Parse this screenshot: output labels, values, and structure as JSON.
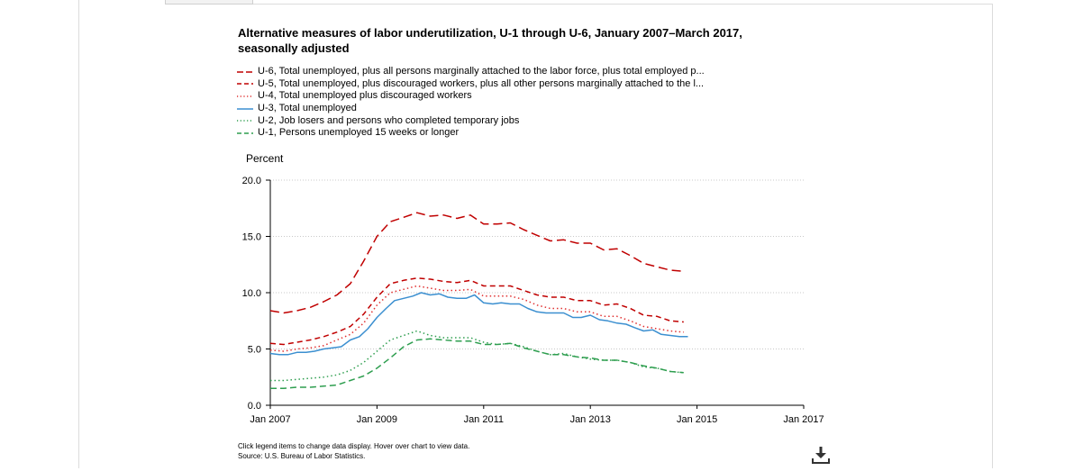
{
  "chart_data": {
    "type": "line",
    "title": "Alternative measures of labor underutilization, U-1 through U-6, January 2007–March 2017, seasonally adjusted",
    "ylabel": "Percent",
    "xlabel": "",
    "xlim": [
      2007.0,
      2017.0
    ],
    "ylim": [
      0,
      20
    ],
    "yticks": [
      "0.0",
      "5.0",
      "10.0",
      "15.0",
      "20.0"
    ],
    "yticks_values": [
      0,
      5,
      10,
      15,
      20
    ],
    "xticks": [
      "Jan 2007",
      "Jan 2009",
      "Jan 2011",
      "Jan 2013",
      "Jan 2015",
      "Jan 2017"
    ],
    "xticks_values": [
      2007,
      2009,
      2011,
      2013,
      2015,
      2017
    ],
    "grid": "horizontal dotted",
    "legend_position": "top",
    "series": [
      {
        "name": "U-6, Total unemployed, plus all persons marginally attached to the labor force, plus total employed p...",
        "color": "#c00000",
        "dash": "10,5",
        "width": 1.5,
        "x": [
          2007.0,
          2007.25,
          2007.5,
          2007.75,
          2008.0,
          2008.25,
          2008.5,
          2008.75,
          2009.0,
          2009.25,
          2009.5,
          2009.75,
          2010.0,
          2010.25,
          2010.5,
          2010.75,
          2011.0,
          2011.25,
          2011.5,
          2011.75,
          2012.0,
          2012.25,
          2012.5,
          2012.75,
          2013.0,
          2013.25,
          2013.5,
          2013.75,
          2014.0,
          2014.25,
          2014.5,
          2014.75
        ],
        "y": [
          8.4,
          8.2,
          8.4,
          8.7,
          9.2,
          9.8,
          10.8,
          12.8,
          15.0,
          16.3,
          16.7,
          17.1,
          16.8,
          16.9,
          16.6,
          16.9,
          16.1,
          16.1,
          16.2,
          15.6,
          15.1,
          14.6,
          14.7,
          14.4,
          14.4,
          13.8,
          13.9,
          13.3,
          12.6,
          12.3,
          12.0,
          11.9
        ]
      },
      {
        "name": "U-5, Total unemployed, plus discouraged workers, plus all other persons marginally attached to the l...",
        "color": "#c00000",
        "dash": "6,4",
        "width": 1.5,
        "x": [
          2007.0,
          2007.25,
          2007.5,
          2007.75,
          2008.0,
          2008.25,
          2008.5,
          2008.75,
          2009.0,
          2009.25,
          2009.5,
          2009.75,
          2010.0,
          2010.25,
          2010.5,
          2010.75,
          2011.0,
          2011.25,
          2011.5,
          2011.75,
          2012.0,
          2012.25,
          2012.5,
          2012.75,
          2013.0,
          2013.25,
          2013.5,
          2013.75,
          2014.0,
          2014.25,
          2014.5,
          2014.75
        ],
        "y": [
          5.5,
          5.4,
          5.6,
          5.8,
          6.1,
          6.5,
          7.0,
          8.1,
          9.6,
          10.8,
          11.1,
          11.3,
          11.2,
          11.0,
          10.9,
          11.1,
          10.6,
          10.6,
          10.6,
          10.2,
          9.8,
          9.6,
          9.6,
          9.3,
          9.3,
          8.9,
          9.0,
          8.6,
          8.0,
          7.9,
          7.5,
          7.4
        ]
      },
      {
        "name": "U-4, Total unemployed plus discouraged workers",
        "color": "#e03030",
        "dash": "1.5,3",
        "width": 1.5,
        "x": [
          2007.0,
          2007.25,
          2007.5,
          2007.75,
          2008.0,
          2008.25,
          2008.5,
          2008.75,
          2009.0,
          2009.25,
          2009.5,
          2009.75,
          2010.0,
          2010.25,
          2010.5,
          2010.75,
          2011.0,
          2011.25,
          2011.5,
          2011.75,
          2012.0,
          2012.25,
          2012.5,
          2012.75,
          2013.0,
          2013.25,
          2013.5,
          2013.75,
          2014.0,
          2014.25,
          2014.5,
          2014.75
        ],
        "y": [
          4.9,
          4.8,
          5.0,
          5.1,
          5.3,
          5.8,
          6.3,
          7.3,
          8.9,
          10.0,
          10.3,
          10.6,
          10.4,
          10.2,
          10.2,
          10.3,
          9.7,
          9.7,
          9.7,
          9.4,
          8.9,
          8.6,
          8.6,
          8.3,
          8.3,
          7.9,
          7.9,
          7.5,
          7.0,
          6.8,
          6.6,
          6.5
        ]
      },
      {
        "name": "U-3, Total unemployed",
        "color": "#3b8fd0",
        "dash": "",
        "width": 1.5,
        "x": [
          2007.0,
          2007.17,
          2007.33,
          2007.5,
          2007.67,
          2007.83,
          2008.0,
          2008.17,
          2008.33,
          2008.5,
          2008.67,
          2008.83,
          2009.0,
          2009.17,
          2009.33,
          2009.5,
          2009.67,
          2009.83,
          2010.0,
          2010.17,
          2010.33,
          2010.5,
          2010.67,
          2010.83,
          2011.0,
          2011.17,
          2011.33,
          2011.5,
          2011.67,
          2011.83,
          2012.0,
          2012.17,
          2012.33,
          2012.5,
          2012.67,
          2012.83,
          2013.0,
          2013.17,
          2013.33,
          2013.5,
          2013.67,
          2013.83,
          2014.0,
          2014.17,
          2014.33,
          2014.5,
          2014.67,
          2014.83
        ],
        "y": [
          4.6,
          4.5,
          4.5,
          4.7,
          4.7,
          4.8,
          5.0,
          5.1,
          5.2,
          5.8,
          6.1,
          6.8,
          7.8,
          8.6,
          9.3,
          9.5,
          9.7,
          10.0,
          9.8,
          9.9,
          9.6,
          9.5,
          9.5,
          9.8,
          9.1,
          9.0,
          9.1,
          9.0,
          9.0,
          8.6,
          8.3,
          8.2,
          8.2,
          8.2,
          7.8,
          7.8,
          8.0,
          7.6,
          7.5,
          7.3,
          7.2,
          6.9,
          6.6,
          6.7,
          6.3,
          6.2,
          6.1,
          6.1
        ]
      },
      {
        "name": "U-2, Job losers and persons who completed temporary jobs",
        "color": "#2e9e4f",
        "dash": "1.5,3",
        "width": 1.5,
        "x": [
          2007.0,
          2007.25,
          2007.5,
          2007.75,
          2008.0,
          2008.25,
          2008.5,
          2008.75,
          2009.0,
          2009.25,
          2009.5,
          2009.75,
          2010.0,
          2010.25,
          2010.5,
          2010.75,
          2011.0,
          2011.25,
          2011.5,
          2011.75,
          2012.0,
          2012.25,
          2012.5,
          2012.75,
          2013.0,
          2013.25,
          2013.5,
          2013.75,
          2014.0,
          2014.25,
          2014.5,
          2014.75
        ],
        "y": [
          2.2,
          2.2,
          2.3,
          2.4,
          2.5,
          2.7,
          3.1,
          3.8,
          4.8,
          5.8,
          6.2,
          6.6,
          6.2,
          6.0,
          6.0,
          6.0,
          5.6,
          5.4,
          5.5,
          5.2,
          4.8,
          4.5,
          4.6,
          4.3,
          4.1,
          4.0,
          4.0,
          3.8,
          3.4,
          3.3,
          3.0,
          2.9
        ]
      },
      {
        "name": "U-1, Persons unemployed 15 weeks or longer",
        "color": "#2e9e4f",
        "dash": "7,4",
        "width": 1.5,
        "x": [
          2007.0,
          2007.25,
          2007.5,
          2007.75,
          2008.0,
          2008.25,
          2008.5,
          2008.75,
          2009.0,
          2009.25,
          2009.5,
          2009.75,
          2010.0,
          2010.25,
          2010.5,
          2010.75,
          2011.0,
          2011.25,
          2011.5,
          2011.75,
          2012.0,
          2012.25,
          2012.5,
          2012.75,
          2013.0,
          2013.25,
          2013.5,
          2013.75,
          2014.0,
          2014.25,
          2014.5,
          2014.75
        ],
        "y": [
          1.5,
          1.5,
          1.6,
          1.6,
          1.7,
          1.8,
          2.2,
          2.6,
          3.3,
          4.2,
          5.2,
          5.8,
          5.9,
          5.8,
          5.7,
          5.7,
          5.4,
          5.4,
          5.5,
          5.1,
          4.8,
          4.5,
          4.5,
          4.3,
          4.2,
          4.0,
          4.0,
          3.8,
          3.5,
          3.3,
          3.0,
          2.9
        ]
      }
    ]
  },
  "footnote": {
    "line1": "Click legend items to change data display. Hover over chart to view data.",
    "line2": "Source: U.S. Bureau of Labor Statistics."
  },
  "icons": {
    "download": "download-icon"
  }
}
